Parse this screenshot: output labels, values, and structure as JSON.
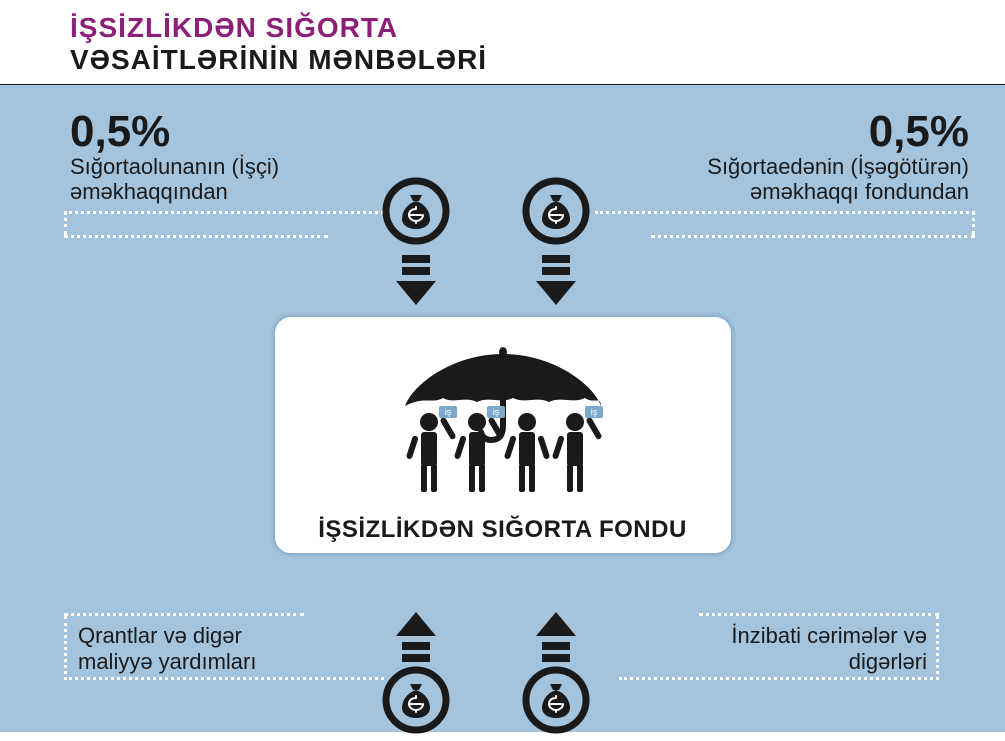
{
  "page": {
    "background_color": "#a4c4dd",
    "accent_color": "#8c1f78",
    "fg_color": "#1a1a1a",
    "dot_color": "#ffffff",
    "card_bg": "#ffffff",
    "card_border": "#8ab0d0"
  },
  "header": {
    "line1": "İŞSİZLİKDƏN SIĞORTA",
    "line2": "VƏSAİTLƏRİNİN MƏNBƏLƏRİ"
  },
  "center": {
    "title": "İŞSİZLİKDƏN SIĞORTA FONDU",
    "sign_label": "iş"
  },
  "sources": {
    "top_left": {
      "percent": "0,5%",
      "line1": "Sığortaolunanın (İşçi)",
      "line2": "əməkhaqqından"
    },
    "top_right": {
      "percent": "0,5%",
      "line1": "Sığortaedənin (İşəgötürən)",
      "line2": "əməkhaqqı fondundan"
    },
    "bottom_left": {
      "line1": "Qrantlar və digər",
      "line2": "maliyyə yardımları"
    },
    "bottom_right": {
      "line1": "İnzibati cərimələr və",
      "line2": "digərləri"
    }
  },
  "styling": {
    "type": "infographic",
    "title_fontsize": 28,
    "percent_fontsize": 44,
    "desc_fontsize": 22,
    "card_title_fontsize": 24,
    "bag_circle_stroke": "#1a1a1a",
    "bag_fill": "#1a1a1a",
    "bag_inner": "#ffffff",
    "arrow_fill": "#1a1a1a"
  }
}
